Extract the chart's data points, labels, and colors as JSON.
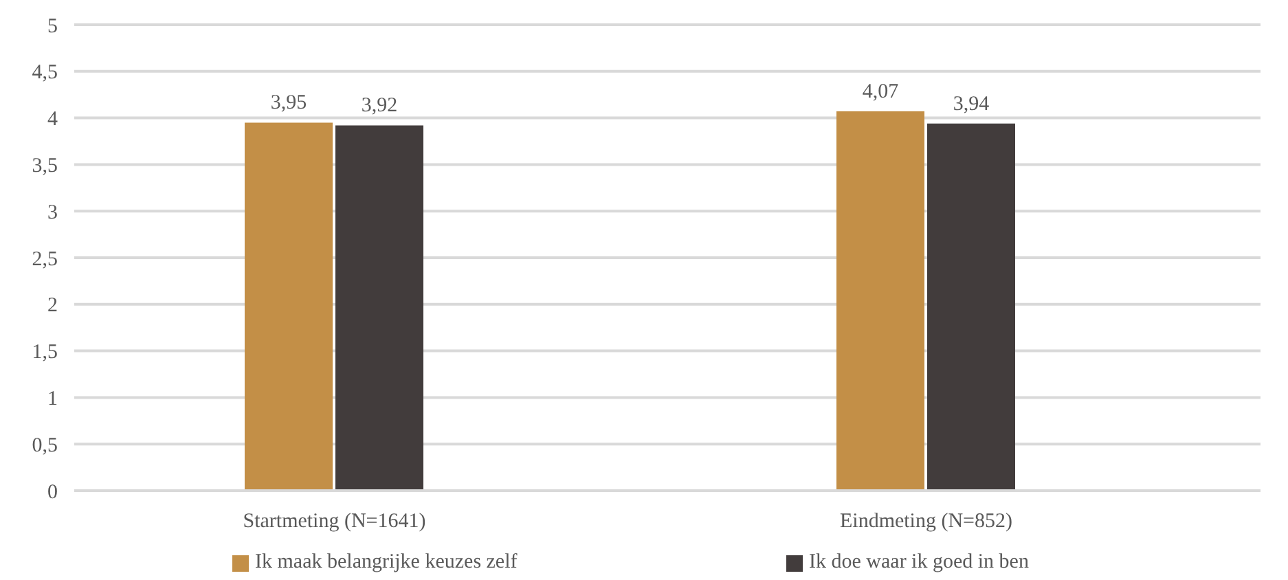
{
  "chart_data": {
    "type": "bar",
    "categories": [
      "Startmeting (N=1641)",
      "Eindmeting (N=852)"
    ],
    "series": [
      {
        "name": "Ik maak belangrijke keuzes zelf",
        "color": "#c38f47",
        "values": [
          3.95,
          4.07
        ],
        "value_labels": [
          "3,95",
          "4,07"
        ]
      },
      {
        "name": "Ik doe waar ik goed in ben",
        "color": "#423c3c",
        "values": [
          3.92,
          3.94
        ],
        "value_labels": [
          "3,92",
          "3,94"
        ]
      }
    ],
    "ylim": [
      0,
      5
    ],
    "yticks": [
      0,
      {
        "value": 0.5,
        "label": "0,5"
      },
      1,
      {
        "value": 1.5,
        "label": "1,5"
      },
      2,
      {
        "value": 2.5,
        "label": "2,5"
      },
      3,
      {
        "value": 3.5,
        "label": "3,5"
      },
      4,
      {
        "value": 4.5,
        "label": "4,5"
      },
      5
    ],
    "grid": "y",
    "legend": "bottom"
  }
}
